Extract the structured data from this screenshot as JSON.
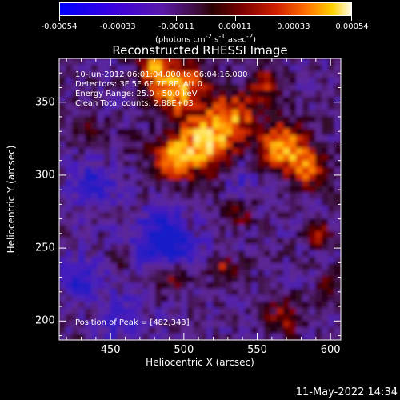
{
  "colorbar": {
    "tick_labels": [
      "-0.00054",
      "-0.00033",
      "-0.00011",
      "0.00011",
      "0.00033",
      "0.00054"
    ],
    "units_html": "(photons cm<sup>-2</sup> s<sup>-1</sup> asec<sup>-2</sup>)",
    "units_text": "(photons cm-2 s-1 asec-2)"
  },
  "title": "Reconstructed RHESSI Image",
  "annotations": {
    "line1": "10-Jun-2012 06:01:04.000 to 06:04:16.000",
    "line2": "Detectors: 3F 5F 6F 7F 8F, Att 0",
    "line3": "Energy Range: 25.0 - 50.0 keV",
    "line4": "Clean     Total counts: 2.88E+03",
    "peak": "Position of Peak = [482,343]"
  },
  "axes": {
    "xlabel": "Heliocentric X (arcsec)",
    "ylabel": "Heliocentric Y (arcsec)",
    "xticks": [
      "450",
      "500",
      "550",
      "600"
    ],
    "yticks": [
      "200",
      "250",
      "300",
      "350"
    ],
    "xlim": [
      415,
      607
    ],
    "ylim": [
      187,
      380
    ]
  },
  "footer": {
    "date": "11-May-2022 14:34"
  },
  "colors": {
    "background": "#000000",
    "foreground": "#ffffff"
  }
}
